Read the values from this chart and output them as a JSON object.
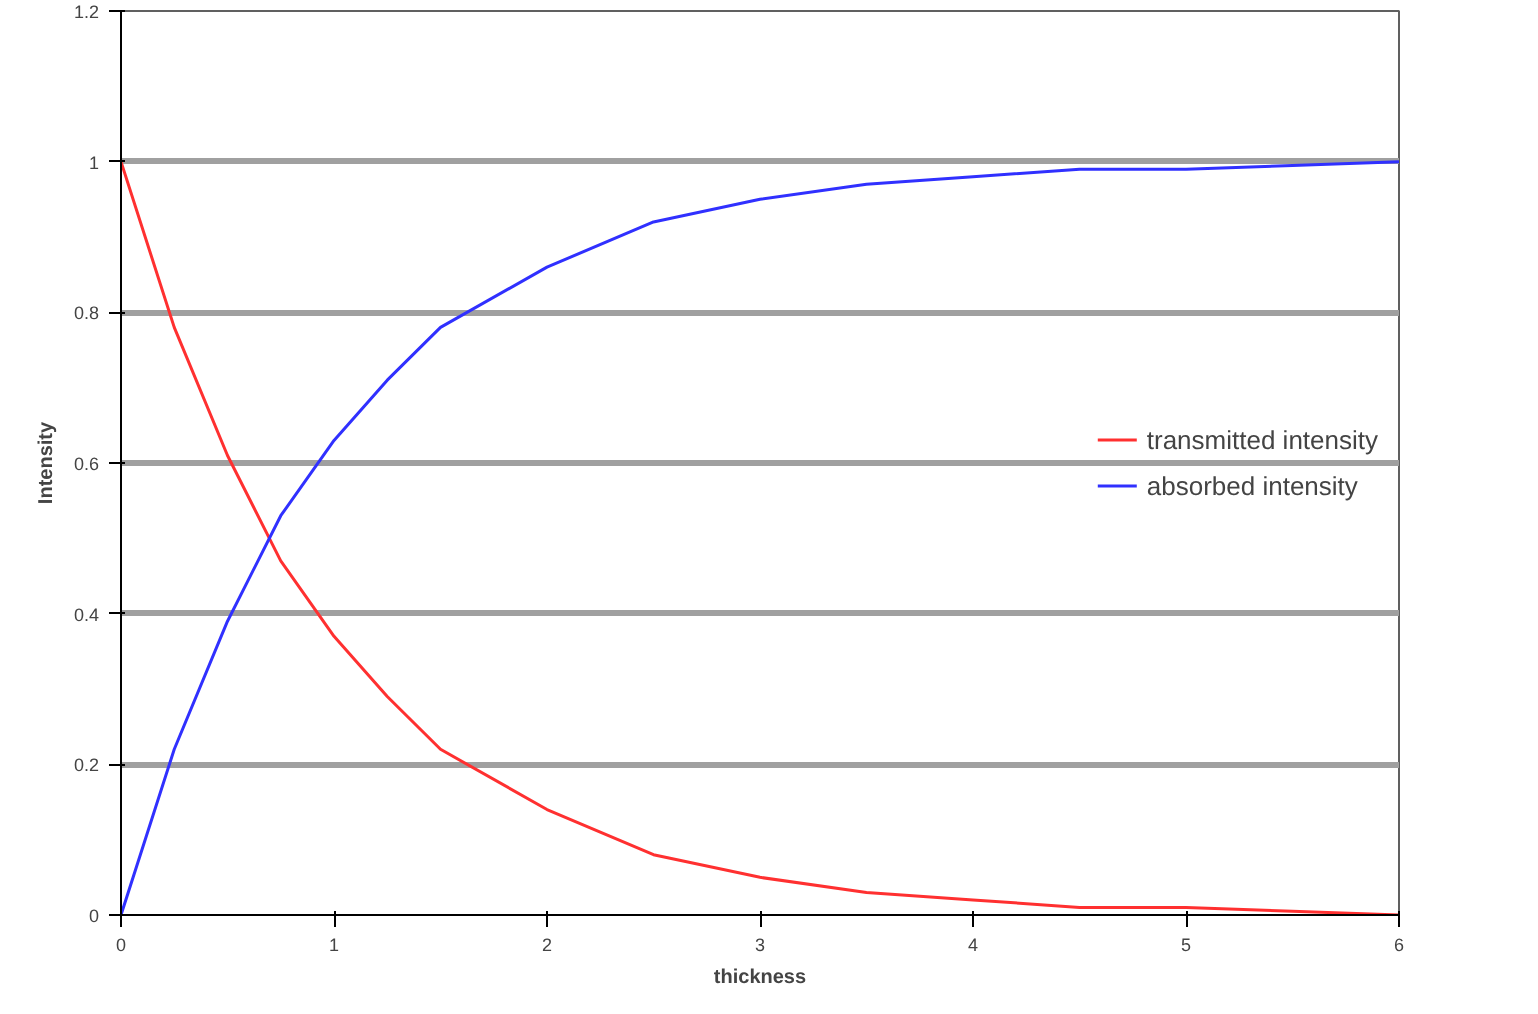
{
  "chart_data": {
    "type": "line",
    "xlabel": "thickness",
    "ylabel": "Intensity",
    "x": [
      0,
      0.25,
      0.5,
      0.75,
      1,
      1.25,
      1.5,
      2,
      2.5,
      3,
      3.5,
      4,
      4.5,
      5,
      5.5,
      6
    ],
    "series": [
      {
        "name": "transmitted intensity",
        "color": "#ff3030",
        "values": [
          1,
          0.78,
          0.61,
          0.47,
          0.37,
          0.29,
          0.22,
          0.14,
          0.08,
          0.05,
          0.03,
          0.02,
          0.01,
          0.01,
          0.005,
          0.0
        ]
      },
      {
        "name": "absorbed intensity",
        "color": "#3030ff",
        "values": [
          0,
          0.22,
          0.39,
          0.53,
          0.63,
          0.71,
          0.78,
          0.86,
          0.92,
          0.95,
          0.97,
          0.98,
          0.99,
          0.99,
          0.995,
          1.0
        ]
      }
    ],
    "xlim": [
      0,
      6
    ],
    "xticks": [
      0,
      1,
      2,
      3,
      4,
      5,
      6
    ],
    "ylim": [
      0,
      1.2
    ],
    "yticks": [
      0,
      0.2,
      0.4,
      0.6,
      0.8,
      1,
      1.2
    ],
    "grid": "y",
    "legend": "right",
    "marker": "none",
    "line_style": "solid"
  }
}
